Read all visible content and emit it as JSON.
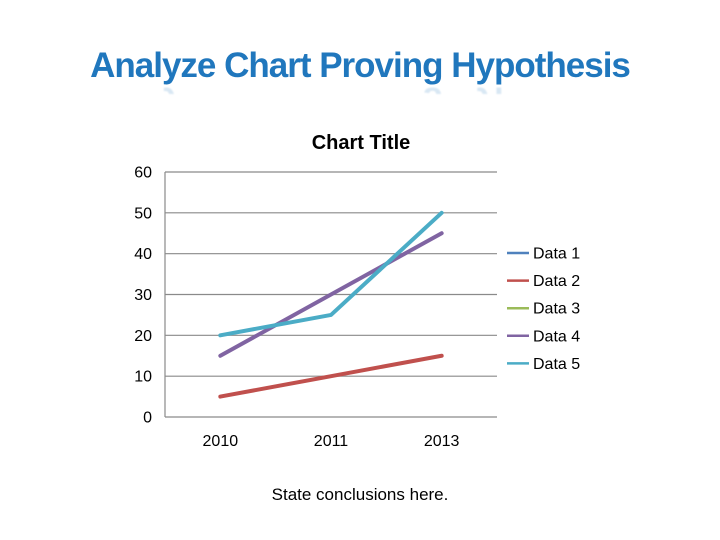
{
  "slide": {
    "title": "Analyze Chart Proving Hypothesis",
    "title_color": "#2077BD",
    "conclusion": "State conclusions here."
  },
  "chart_data": {
    "type": "line",
    "title": "Chart Title",
    "categories": [
      "2010",
      "2011",
      "2013"
    ],
    "series": [
      {
        "name": "Data 1",
        "color": "#4F81BD",
        "plotted": false,
        "values": null
      },
      {
        "name": "Data 2",
        "color": "#C0504D",
        "plotted": true,
        "values": [
          5,
          10,
          15
        ]
      },
      {
        "name": "Data 3",
        "color": "#9BBB59",
        "plotted": false,
        "values": null
      },
      {
        "name": "Data 4",
        "color": "#8064A2",
        "plotted": true,
        "values": [
          15,
          30,
          45
        ]
      },
      {
        "name": "Data 5",
        "color": "#4BACC6",
        "plotted": true,
        "values": [
          20,
          25,
          50
        ]
      }
    ],
    "xlabel": "",
    "ylabel": "",
    "ylim": [
      0,
      60
    ],
    "yticks": [
      0,
      10,
      20,
      30,
      40,
      50,
      60
    ],
    "grid": "horizontal-only",
    "gridline_color": "#8A8A8A",
    "axis_text_color": "#000000",
    "legend_position": "right"
  }
}
